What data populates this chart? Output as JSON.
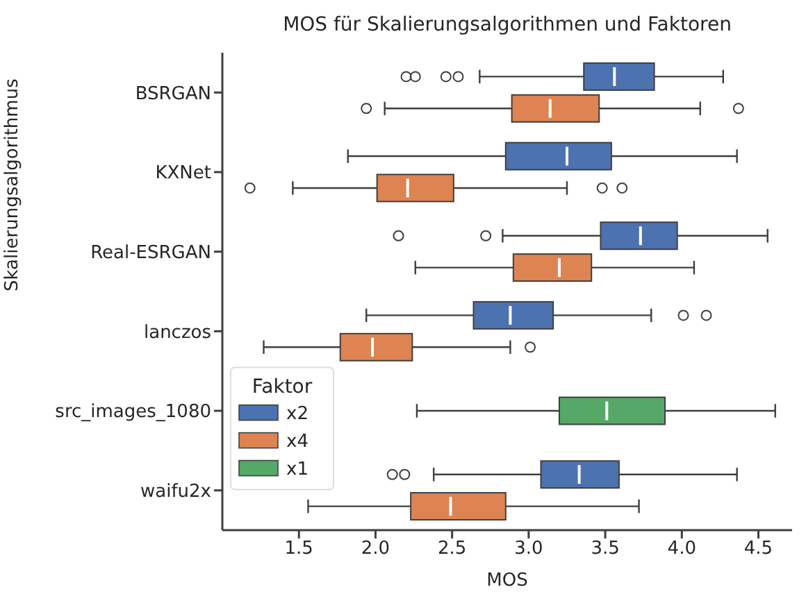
{
  "chart_data": {
    "type": "box",
    "orientation": "horizontal",
    "title": "MOS für Skalierungsalgorithmen und Faktoren",
    "xlabel": "MOS",
    "ylabel": "Skalierungsalgorithmus",
    "legend_title": "Faktor",
    "legend": "bottom left",
    "categories": [
      "BSRGAN",
      "KXNet",
      "Real-ESRGAN",
      "lanczos",
      "src_images_1080",
      "waifu2x"
    ],
    "xlim": [
      1.0,
      4.72
    ],
    "xticks": [
      1.5,
      {
        "value": 2,
        "label": "2.0"
      },
      2.5,
      {
        "value": 3,
        "label": "3.0"
      },
      3.5,
      {
        "value": 4,
        "label": "4.0"
      },
      4.5
    ],
    "series": [
      {
        "name": "x2",
        "color": "#4c72b0",
        "boxes": [
          {
            "low": 2.68,
            "q1": 3.36,
            "median": 3.56,
            "q3": 3.82,
            "high": 4.27,
            "outliers": [
              2.2,
              2.26,
              2.46,
              2.54
            ]
          },
          {
            "low": 1.82,
            "q1": 2.85,
            "median": 3.25,
            "q3": 3.54,
            "high": 4.36
          },
          {
            "low": 2.83,
            "q1": 3.47,
            "median": 3.73,
            "q3": 3.97,
            "high": 4.56,
            "outliers": [
              2.15,
              2.72
            ]
          },
          {
            "low": 1.94,
            "q1": 2.64,
            "median": 2.88,
            "q3": 3.16,
            "high": 3.8,
            "outliers": [
              4.01,
              4.16
            ]
          },
          null,
          {
            "low": 2.38,
            "q1": 3.08,
            "median": 3.33,
            "q3": 3.59,
            "high": 4.36,
            "outliers": [
              2.11,
              2.19
            ]
          }
        ]
      },
      {
        "name": "x4",
        "color": "#dd8452",
        "boxes": [
          {
            "low": 2.06,
            "q1": 2.89,
            "median": 3.14,
            "q3": 3.46,
            "high": 4.12,
            "outliers": [
              1.94,
              4.37
            ]
          },
          {
            "low": 1.46,
            "q1": 2.01,
            "median": 2.21,
            "q3": 2.51,
            "high": 3.25,
            "outliers": [
              1.18,
              3.48,
              3.61
            ]
          },
          {
            "low": 2.26,
            "q1": 2.9,
            "median": 3.2,
            "q3": 3.41,
            "high": 4.08
          },
          {
            "low": 1.27,
            "q1": 1.77,
            "median": 1.98,
            "q3": 2.24,
            "high": 2.88,
            "outliers": [
              3.01
            ]
          },
          null,
          {
            "low": 1.56,
            "q1": 2.23,
            "median": 2.49,
            "q3": 2.85,
            "high": 3.72
          }
        ]
      },
      {
        "name": "x1",
        "color": "#55a868",
        "boxes": [
          null,
          null,
          null,
          null,
          {
            "low": 2.27,
            "q1": 3.2,
            "median": 3.51,
            "q3": 3.89,
            "high": 4.61
          },
          null
        ]
      }
    ]
  }
}
